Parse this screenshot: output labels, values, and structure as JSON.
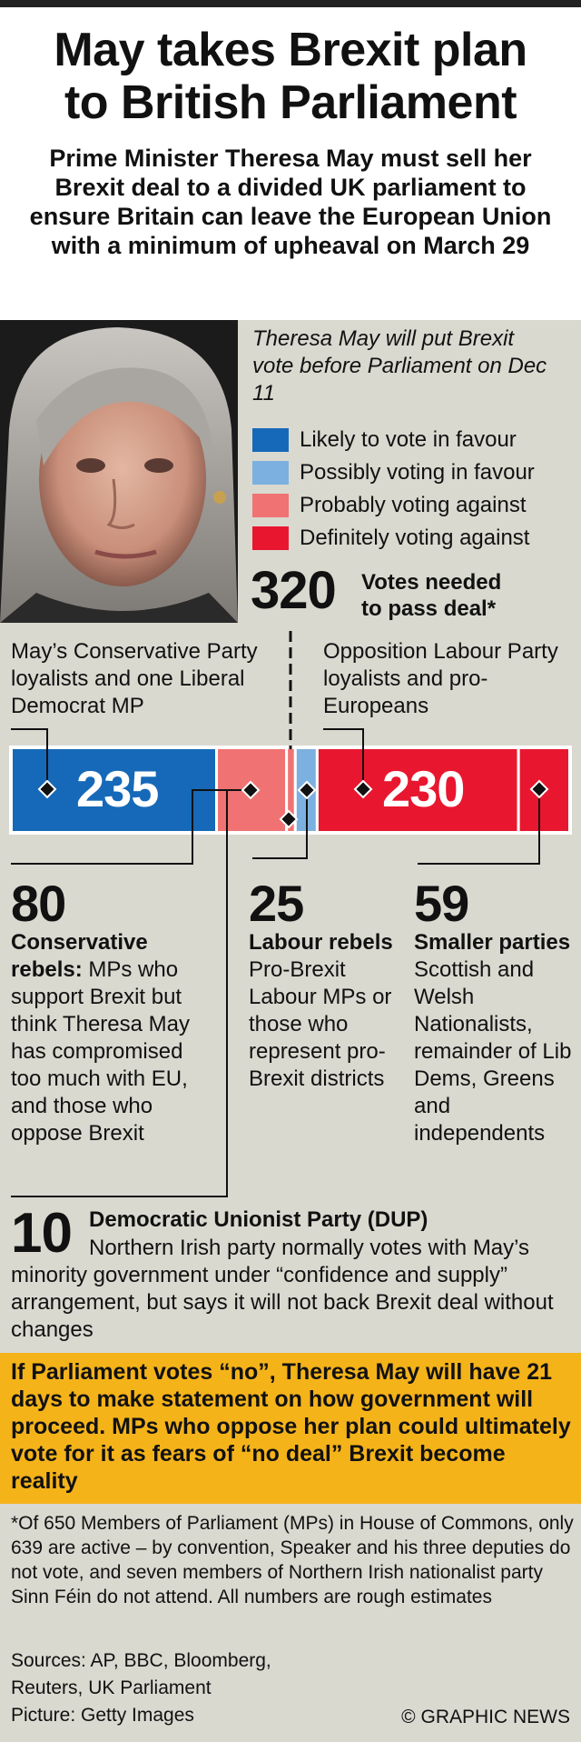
{
  "title_line1": "May takes Brexit plan",
  "title_line2": "to British Parliament",
  "subtitle": "Prime Minister Theresa May must sell her Brexit deal to a divided UK parliament to ensure Britain can leave the European Union with a minimum of upheaval on March 29",
  "intro": "Theresa May will put Brexit vote before Parliament on Dec 11",
  "legend": [
    {
      "label": "Likely to vote in favour",
      "color": "#1669b8"
    },
    {
      "label": "Possibly voting in favour",
      "color": "#7cb0e0"
    },
    {
      "label": "Probably voting against",
      "color": "#f07272"
    },
    {
      "label": "Definitely voting against",
      "color": "#e8172f"
    }
  ],
  "threshold": {
    "value": "320",
    "label_line1": "Votes needed",
    "label_line2": "to pass deal*"
  },
  "cons_note": "May’s Conservative Party loyalists and one Liberal Democrat MP",
  "lab_note": "Opposition Labour Party loyalists and pro-Europeans",
  "chart_data": {
    "type": "bar",
    "orientation": "horizontal-stacked",
    "threshold": 320,
    "total": 639,
    "segments": [
      {
        "value": 235,
        "category": "Likely to vote in favour",
        "color": "#1669b8",
        "label": "235"
      },
      {
        "value": 80,
        "category": "Probably voting against",
        "color": "#f07272",
        "label": "80"
      },
      {
        "value": 10,
        "category": "Probably voting against",
        "color": "#f07272",
        "label": "10"
      },
      {
        "value": 25,
        "category": "Possibly voting in favour",
        "color": "#7cb0e0",
        "label": "25"
      },
      {
        "value": 230,
        "category": "Definitely voting against",
        "color": "#e8172f",
        "label": "230"
      },
      {
        "value": 59,
        "category": "Definitely voting against",
        "color": "#e8172f",
        "label": "59"
      }
    ]
  },
  "groups": [
    {
      "number": "80",
      "bold": "Conservative rebels:",
      "text": " MPs who support Brexit but think Theresa May has compromised too much with EU, and those who oppose Brexit"
    },
    {
      "number": "25",
      "bold": "Labour rebels",
      "text": " Pro-Brexit Labour MPs or those who represent pro-Brexit districts"
    },
    {
      "number": "59",
      "bold": "Smaller parties",
      "text": " Scottish and Welsh Nationalists, remainder of Lib Dems, Greens and independents"
    }
  ],
  "dup": {
    "number": "10",
    "title": "Democratic Unionist Party (DUP)",
    "text": "Northern Irish party normally votes with May’s minority government under “confidence and supply” arrangement, but says it will not back Brexit deal without changes"
  },
  "callout": "If Parliament votes “no”, Theresa May will have 21 days to make statement on how government will proceed. MPs who oppose her plan could ultimately vote for it as fears of “no deal” Brexit become reality",
  "footnote": "*Of 650 Members of Parliament (MPs) in House of Commons, only 639 are active – by convention, Speaker and his three deputies do not vote, and seven members of Northern Irish nationalist party Sinn Féin do not attend. All numbers are rough estimates",
  "sources_line1": "Sources: AP, BBC, Bloomberg,",
  "sources_line2": "Reuters, UK Parliament",
  "picture": "Picture: Getty Images",
  "credit": "© GRAPHIC NEWS"
}
